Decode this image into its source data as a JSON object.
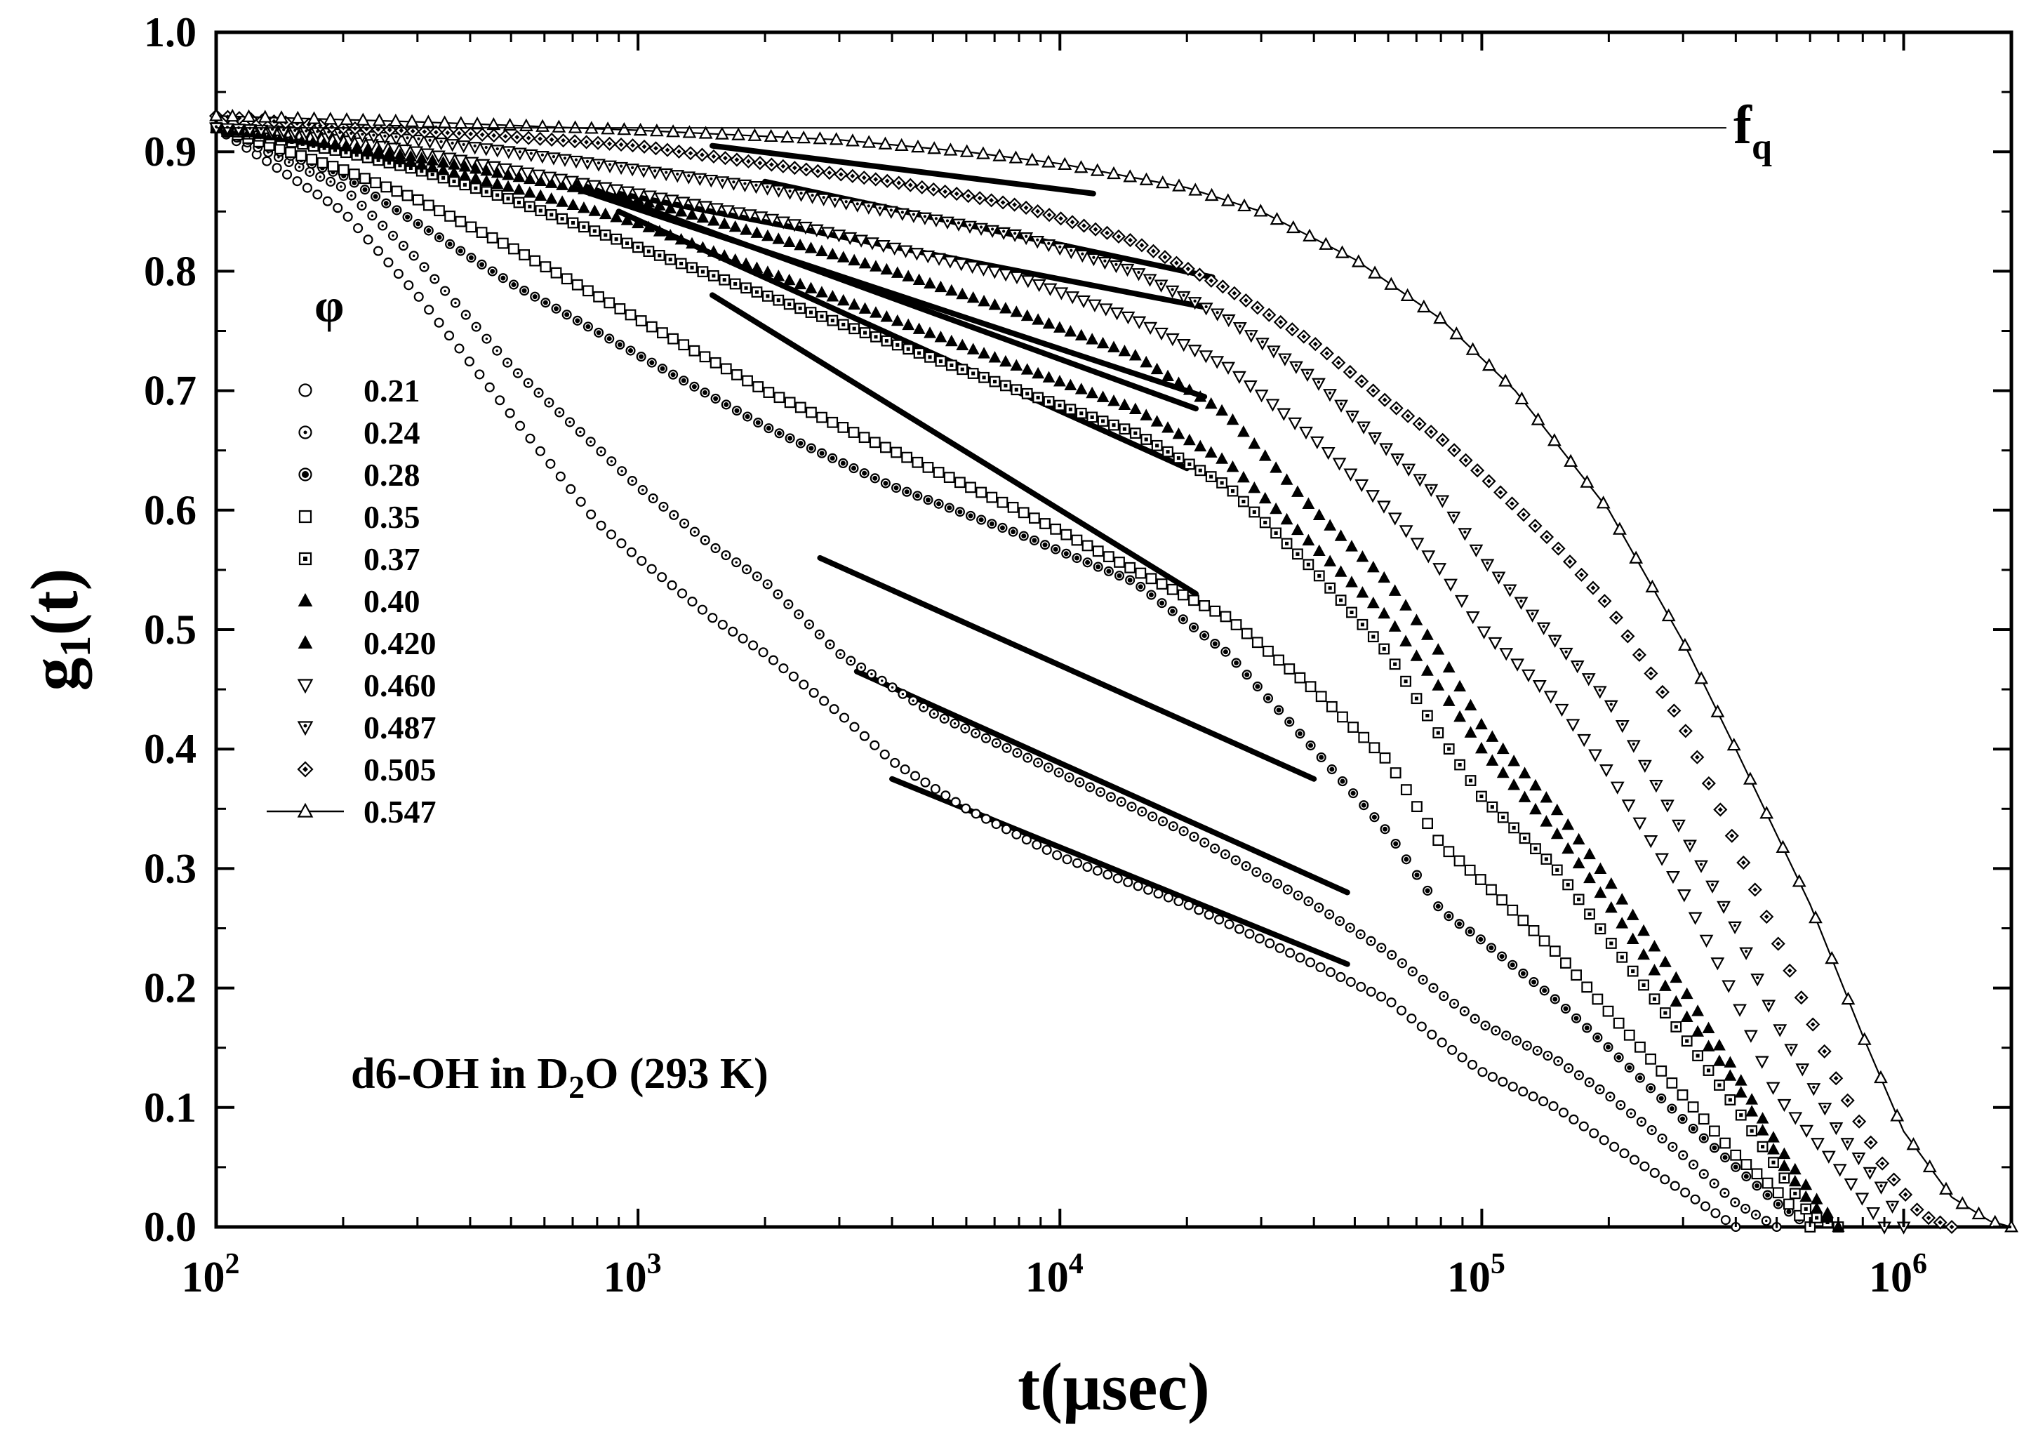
{
  "chart_data": {
    "type": "scatter",
    "title": "",
    "xlabel": "t(µsec)",
    "ylabel_main": "g",
    "ylabel_sub": "1",
    "ylabel_tail": "(t)",
    "xscale": "log",
    "xlim": [
      100,
      1800000
    ],
    "ylim": [
      0,
      1.0
    ],
    "x_ticks": [
      {
        "value": 100,
        "base": "10",
        "exp": "2"
      },
      {
        "value": 1000,
        "base": "10",
        "exp": "3"
      },
      {
        "value": 10000,
        "base": "10",
        "exp": "4"
      },
      {
        "value": 100000,
        "base": "10",
        "exp": "5"
      },
      {
        "value": 1000000,
        "base": "10",
        "exp": "6"
      }
    ],
    "y_ticks": [
      "0.0",
      "0.1",
      "0.2",
      "0.3",
      "0.4",
      "0.5",
      "0.6",
      "0.7",
      "0.8",
      "0.9",
      "1.0"
    ],
    "y_tick_values": [
      0,
      0.1,
      0.2,
      0.3,
      0.4,
      0.5,
      0.6,
      0.7,
      0.8,
      0.9,
      1.0
    ],
    "legend_title": "φ",
    "legend_position": "left",
    "grid": false,
    "annotation": {
      "text_pre": "d6-OH in D",
      "sub": "2",
      "text_post": "O  (293 K)"
    },
    "fq_label": {
      "main": "f",
      "sub": "q"
    },
    "fq_line": {
      "y": 0.92,
      "x_start": 100,
      "x_end": 380000
    },
    "series": [
      {
        "name": "0.21",
        "marker": "circle-open",
        "points": [
          [
            100,
            0.92
          ],
          [
            200,
            0.85
          ],
          [
            300,
            0.78
          ],
          [
            500,
            0.68
          ],
          [
            800,
            0.59
          ],
          [
            1000,
            0.56
          ],
          [
            1500,
            0.51
          ],
          [
            2000,
            0.48
          ],
          [
            3000,
            0.43
          ],
          [
            4000,
            0.39
          ],
          [
            6000,
            0.35
          ],
          [
            10000,
            0.31
          ],
          [
            20000,
            0.27
          ],
          [
            40000,
            0.22
          ],
          [
            60000,
            0.19
          ],
          [
            80000,
            0.155
          ],
          [
            100000,
            0.13
          ],
          [
            150000,
            0.1
          ],
          [
            200000,
            0.07
          ],
          [
            300000,
            0.03
          ],
          [
            400000,
            0.0
          ]
        ]
      },
      {
        "name": "0.24",
        "marker": "circle-dot",
        "points": [
          [
            100,
            0.92
          ],
          [
            200,
            0.87
          ],
          [
            300,
            0.81
          ],
          [
            500,
            0.72
          ],
          [
            1000,
            0.62
          ],
          [
            1500,
            0.57
          ],
          [
            2000,
            0.54
          ],
          [
            3000,
            0.48
          ],
          [
            5000,
            0.43
          ],
          [
            10000,
            0.38
          ],
          [
            20000,
            0.33
          ],
          [
            40000,
            0.27
          ],
          [
            60000,
            0.23
          ],
          [
            80000,
            0.195
          ],
          [
            100000,
            0.17
          ],
          [
            150000,
            0.14
          ],
          [
            200000,
            0.11
          ],
          [
            300000,
            0.06
          ],
          [
            400000,
            0.02
          ],
          [
            500000,
            0.0
          ]
        ]
      },
      {
        "name": "0.28",
        "marker": "circle-filledcenter",
        "points": [
          [
            100,
            0.92
          ],
          [
            200,
            0.88
          ],
          [
            300,
            0.84
          ],
          [
            500,
            0.79
          ],
          [
            1000,
            0.73
          ],
          [
            2000,
            0.67
          ],
          [
            4000,
            0.62
          ],
          [
            8000,
            0.58
          ],
          [
            15000,
            0.54
          ],
          [
            25000,
            0.48
          ],
          [
            40000,
            0.4
          ],
          [
            60000,
            0.33
          ],
          [
            80000,
            0.265
          ],
          [
            100000,
            0.24
          ],
          [
            150000,
            0.19
          ],
          [
            200000,
            0.15
          ],
          [
            300000,
            0.09
          ],
          [
            400000,
            0.05
          ],
          [
            500000,
            0.02
          ],
          [
            600000,
            0.0
          ]
        ]
      },
      {
        "name": "0.35",
        "marker": "square-open",
        "points": [
          [
            100,
            0.92
          ],
          [
            200,
            0.885
          ],
          [
            300,
            0.86
          ],
          [
            500,
            0.82
          ],
          [
            1000,
            0.76
          ],
          [
            2000,
            0.7
          ],
          [
            4000,
            0.65
          ],
          [
            8000,
            0.6
          ],
          [
            15000,
            0.55
          ],
          [
            25000,
            0.51
          ],
          [
            40000,
            0.45
          ],
          [
            60000,
            0.39
          ],
          [
            80000,
            0.32
          ],
          [
            100000,
            0.29
          ],
          [
            150000,
            0.23
          ],
          [
            200000,
            0.18
          ],
          [
            300000,
            0.11
          ],
          [
            400000,
            0.06
          ],
          [
            500000,
            0.03
          ],
          [
            600000,
            0.0
          ]
        ]
      },
      {
        "name": "0.37",
        "marker": "square-dot",
        "points": [
          [
            100,
            0.92
          ],
          [
            200,
            0.9
          ],
          [
            300,
            0.885
          ],
          [
            500,
            0.86
          ],
          [
            1000,
            0.82
          ],
          [
            2000,
            0.78
          ],
          [
            4000,
            0.74
          ],
          [
            8000,
            0.7
          ],
          [
            15000,
            0.665
          ],
          [
            25000,
            0.62
          ],
          [
            40000,
            0.55
          ],
          [
            60000,
            0.48
          ],
          [
            80000,
            0.41
          ],
          [
            100000,
            0.36
          ],
          [
            150000,
            0.3
          ],
          [
            200000,
            0.24
          ],
          [
            300000,
            0.16
          ],
          [
            400000,
            0.1
          ],
          [
            500000,
            0.05
          ],
          [
            600000,
            0.01
          ],
          [
            700000,
            0.0
          ]
        ]
      },
      {
        "name": "0.40",
        "marker": "triangle-filled",
        "points": [
          [
            100,
            0.92
          ],
          [
            200,
            0.905
          ],
          [
            300,
            0.89
          ],
          [
            500,
            0.87
          ],
          [
            1000,
            0.84
          ],
          [
            2000,
            0.8
          ],
          [
            4000,
            0.76
          ],
          [
            8000,
            0.72
          ],
          [
            15000,
            0.685
          ],
          [
            25000,
            0.64
          ],
          [
            40000,
            0.57
          ],
          [
            60000,
            0.51
          ],
          [
            80000,
            0.45
          ],
          [
            100000,
            0.4
          ],
          [
            150000,
            0.33
          ],
          [
            200000,
            0.27
          ],
          [
            300000,
            0.18
          ],
          [
            400000,
            0.12
          ],
          [
            500000,
            0.06
          ],
          [
            600000,
            0.02
          ],
          [
            700000,
            0.0
          ]
        ]
      },
      {
        "name": "0.420",
        "marker": "triangle-filled",
        "points": [
          [
            100,
            0.92
          ],
          [
            200,
            0.905
          ],
          [
            300,
            0.895
          ],
          [
            500,
            0.88
          ],
          [
            1000,
            0.86
          ],
          [
            2000,
            0.83
          ],
          [
            4000,
            0.8
          ],
          [
            8000,
            0.765
          ],
          [
            15000,
            0.73
          ],
          [
            25000,
            0.68
          ],
          [
            40000,
            0.6
          ],
          [
            60000,
            0.54
          ],
          [
            80000,
            0.48
          ],
          [
            100000,
            0.42
          ],
          [
            150000,
            0.35
          ],
          [
            200000,
            0.29
          ],
          [
            300000,
            0.2
          ],
          [
            400000,
            0.13
          ],
          [
            500000,
            0.07
          ],
          [
            600000,
            0.03
          ],
          [
            700000,
            0.0
          ]
        ]
      },
      {
        "name": "0.460",
        "marker": "triangle-down-open",
        "points": [
          [
            100,
            0.92
          ],
          [
            200,
            0.91
          ],
          [
            300,
            0.9
          ],
          [
            500,
            0.885
          ],
          [
            1000,
            0.865
          ],
          [
            2000,
            0.845
          ],
          [
            4000,
            0.82
          ],
          [
            8000,
            0.795
          ],
          [
            15000,
            0.76
          ],
          [
            25000,
            0.72
          ],
          [
            40000,
            0.66
          ],
          [
            60000,
            0.6
          ],
          [
            80000,
            0.55
          ],
          [
            100000,
            0.5
          ],
          [
            150000,
            0.44
          ],
          [
            200000,
            0.38
          ],
          [
            300000,
            0.28
          ],
          [
            400000,
            0.19
          ],
          [
            500000,
            0.11
          ],
          [
            700000,
            0.05
          ],
          [
            900000,
            0.0
          ]
        ]
      },
      {
        "name": "0.487",
        "marker": "triangle-down-dot",
        "points": [
          [
            100,
            0.92
          ],
          [
            200,
            0.915
          ],
          [
            300,
            0.91
          ],
          [
            500,
            0.9
          ],
          [
            1000,
            0.885
          ],
          [
            2000,
            0.87
          ],
          [
            4000,
            0.85
          ],
          [
            8000,
            0.83
          ],
          [
            15000,
            0.8
          ],
          [
            25000,
            0.76
          ],
          [
            40000,
            0.71
          ],
          [
            60000,
            0.65
          ],
          [
            80000,
            0.61
          ],
          [
            100000,
            0.56
          ],
          [
            150000,
            0.49
          ],
          [
            200000,
            0.44
          ],
          [
            300000,
            0.33
          ],
          [
            400000,
            0.25
          ],
          [
            500000,
            0.17
          ],
          [
            700000,
            0.08
          ],
          [
            900000,
            0.03
          ],
          [
            1000000,
            0.0
          ]
        ]
      },
      {
        "name": "0.505",
        "marker": "diamond-dot",
        "points": [
          [
            100,
            0.93
          ],
          [
            200,
            0.92
          ],
          [
            400,
            0.915
          ],
          [
            1000,
            0.905
          ],
          [
            2000,
            0.89
          ],
          [
            4000,
            0.875
          ],
          [
            8000,
            0.855
          ],
          [
            15000,
            0.825
          ],
          [
            25000,
            0.785
          ],
          [
            40000,
            0.74
          ],
          [
            60000,
            0.69
          ],
          [
            80000,
            0.66
          ],
          [
            100000,
            0.63
          ],
          [
            150000,
            0.57
          ],
          [
            200000,
            0.52
          ],
          [
            300000,
            0.42
          ],
          [
            400000,
            0.32
          ],
          [
            500000,
            0.24
          ],
          [
            700000,
            0.12
          ],
          [
            900000,
            0.05
          ],
          [
            1100000,
            0.01
          ],
          [
            1300000,
            0.0
          ]
        ]
      },
      {
        "name": "0.547",
        "marker": "triangle-open-line",
        "points": [
          [
            100,
            0.93
          ],
          [
            300,
            0.925
          ],
          [
            1000,
            0.918
          ],
          [
            3000,
            0.91
          ],
          [
            6000,
            0.9
          ],
          [
            10000,
            0.89
          ],
          [
            20000,
            0.87
          ],
          [
            30000,
            0.85
          ],
          [
            50000,
            0.81
          ],
          [
            80000,
            0.76
          ],
          [
            120000,
            0.7
          ],
          [
            200000,
            0.6
          ],
          [
            300000,
            0.49
          ],
          [
            400000,
            0.4
          ],
          [
            600000,
            0.27
          ],
          [
            800000,
            0.16
          ],
          [
            1000000,
            0.08
          ],
          [
            1300000,
            0.025
          ],
          [
            1600000,
            0.005
          ],
          [
            1800000,
            0.0
          ]
        ]
      }
    ],
    "fit_lines": [
      {
        "x1": 4000,
        "y1": 0.375,
        "x2": 48000,
        "y2": 0.22
      },
      {
        "x1": 3300,
        "y1": 0.465,
        "x2": 48000,
        "y2": 0.28
      },
      {
        "x1": 2700,
        "y1": 0.56,
        "x2": 40000,
        "y2": 0.375
      },
      {
        "x1": 1500,
        "y1": 0.78,
        "x2": 21000,
        "y2": 0.53
      },
      {
        "x1": 900,
        "y1": 0.85,
        "x2": 20000,
        "y2": 0.635
      },
      {
        "x1": 700,
        "y1": 0.875,
        "x2": 21000,
        "y2": 0.685
      },
      {
        "x1": 700,
        "y1": 0.87,
        "x2": 22000,
        "y2": 0.695
      },
      {
        "x1": 900,
        "y1": 0.865,
        "x2": 22000,
        "y2": 0.77
      },
      {
        "x1": 2000,
        "y1": 0.875,
        "x2": 23000,
        "y2": 0.795
      },
      {
        "x1": 1500,
        "y1": 0.905,
        "x2": 12000,
        "y2": 0.865
      }
    ]
  }
}
